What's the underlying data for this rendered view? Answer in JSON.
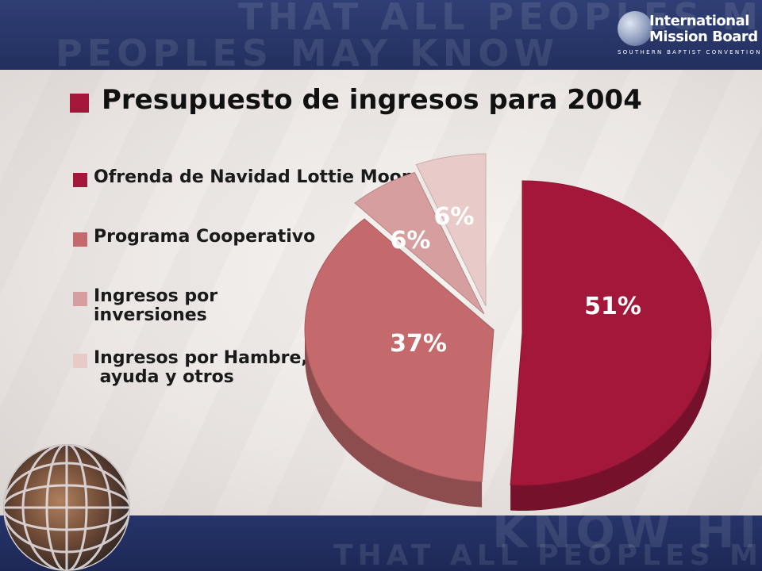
{
  "background": {
    "watermark_top_1": "THAT ALL PEOPLES MAY",
    "watermark_top_2": "PEOPLES MAY KNOW",
    "watermark_bottom_1": "KNOW HIM",
    "watermark_bottom_2": "THAT ALL PEOPLES MAY"
  },
  "logo": {
    "line1": "International",
    "line2": "Mission Board",
    "line3": "SOUTHERN BAPTIST CONVENTION"
  },
  "chart_data": {
    "type": "pie",
    "title": "Presupuesto de ingresos para 2004",
    "legend_position": "left",
    "slices": [
      {
        "label": "Ofrenda de Navidad Lottie Moon",
        "value": 51,
        "value_label": "51%",
        "color": "#a3183a"
      },
      {
        "label": "Programa Cooperativo",
        "value": 37,
        "value_label": "37%",
        "color": "#c46a6c"
      },
      {
        "label": "Ingresos por\ninversiones",
        "value": 6,
        "value_label": "6%",
        "color": "#d69e9e"
      },
      {
        "label": "Ingresos por Hambre,\n ayuda y otros",
        "value": 6,
        "value_label": "6%",
        "color": "#e8cbc9"
      }
    ]
  }
}
